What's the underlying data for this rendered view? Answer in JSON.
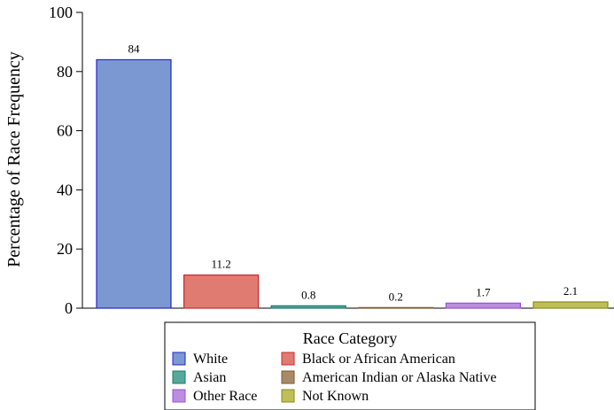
{
  "chart_data": {
    "type": "bar",
    "title": "",
    "xlabel": "",
    "ylabel": "Percentage of Race Frequency",
    "ylim": [
      0,
      100
    ],
    "yticks": [
      0,
      20,
      40,
      60,
      80,
      100
    ],
    "grid": false,
    "categories": [
      "White",
      "Black or African American",
      "Asian",
      "American Indian or Alaska Native",
      "Other Race",
      "Not Known"
    ],
    "values": [
      84,
      11.2,
      0.8,
      0.2,
      1.7,
      2.1
    ],
    "value_labels": [
      "84",
      "11.2",
      "0.8",
      "0.2",
      "1.7",
      "2.1"
    ],
    "colors": {
      "fill": [
        "#7b98d2",
        "#e07b72",
        "#54a99b",
        "#a98a68",
        "#bb8ee0",
        "#bfbf55"
      ],
      "stroke": [
        "#2424c8",
        "#c8282e",
        "#1b7a6e",
        "#7a5a35",
        "#9b4fd6",
        "#8a8a1f"
      ]
    },
    "legend": {
      "title": "Race Category",
      "placement": "bottom",
      "entries": [
        "White",
        "Black or African American",
        "Asian",
        "American Indian or Alaska Native",
        "Other Race",
        "Not Known"
      ]
    }
  }
}
